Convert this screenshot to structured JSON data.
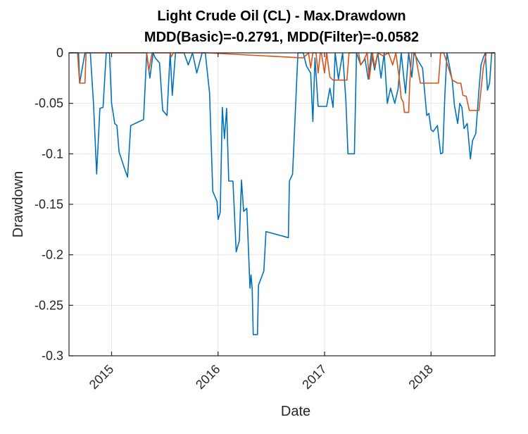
{
  "chart_data": {
    "type": "line",
    "title": "Light Crude Oil (CL) - Max.Drawdown",
    "subtitle": "MDD(Basic)=-0.2791, MDD(Filter)=-0.0582",
    "xlabel": "Date",
    "ylabel": "Drawdown",
    "xlim": [
      2014.6,
      2018.6
    ],
    "ylim": [
      -0.3,
      0
    ],
    "x_ticks": [
      2015,
      2016,
      2017,
      2018
    ],
    "x_tick_labels": [
      "2015",
      "2016",
      "2017",
      "2018"
    ],
    "y_ticks": [
      0,
      -0.05,
      -0.1,
      -0.15,
      -0.2,
      -0.25,
      -0.3
    ],
    "y_tick_labels": [
      "0",
      "-0.05",
      "-0.1",
      "-0.15",
      "-0.2",
      "-0.25",
      "-0.3"
    ],
    "grid": true,
    "colors": {
      "basic": "#0072BD",
      "filter": "#D95319",
      "grid": "#e6e6e6",
      "axis": "#262626"
    },
    "series": [
      {
        "points": [
          [
            2014.6,
            0
          ],
          [
            2014.69,
            0
          ],
          [
            2014.7,
            -0.03
          ],
          [
            2014.75,
            0
          ],
          [
            2014.8,
            0
          ],
          [
            2014.83,
            -0.05
          ],
          [
            2014.86,
            -0.12
          ],
          [
            2014.89,
            -0.055
          ],
          [
            2014.92,
            -0.054
          ],
          [
            2014.95,
            0
          ],
          [
            2014.98,
            0
          ],
          [
            2015.0,
            -0.05
          ],
          [
            2015.03,
            -0.07
          ],
          [
            2015.05,
            -0.072
          ],
          [
            2015.07,
            -0.098
          ],
          [
            2015.12,
            -0.114
          ],
          [
            2015.15,
            -0.123
          ],
          [
            2015.18,
            -0.072
          ],
          [
            2015.3,
            -0.066
          ],
          [
            2015.33,
            0
          ],
          [
            2015.36,
            -0.025
          ],
          [
            2015.39,
            0
          ],
          [
            2015.41,
            -0.005
          ],
          [
            2015.45,
            -0.01
          ],
          [
            2015.48,
            -0.057
          ],
          [
            2015.52,
            -0.062
          ],
          [
            2015.55,
            0
          ],
          [
            2015.57,
            -0.042
          ],
          [
            2015.6,
            0
          ],
          [
            2015.68,
            0
          ],
          [
            2015.72,
            -0.012
          ],
          [
            2015.76,
            0
          ],
          [
            2015.8,
            -0.02
          ],
          [
            2015.85,
            0
          ],
          [
            2015.88,
            0
          ],
          [
            2015.92,
            -0.04
          ],
          [
            2015.95,
            -0.137
          ],
          [
            2015.99,
            -0.147
          ],
          [
            2016.0,
            -0.165
          ],
          [
            2016.02,
            -0.158
          ],
          [
            2016.04,
            -0.054
          ],
          [
            2016.06,
            -0.085
          ],
          [
            2016.08,
            -0.055
          ],
          [
            2016.1,
            -0.127
          ],
          [
            2016.14,
            -0.127
          ],
          [
            2016.17,
            -0.197
          ],
          [
            2016.2,
            -0.186
          ],
          [
            2016.22,
            -0.126
          ],
          [
            2016.24,
            -0.157
          ],
          [
            2016.27,
            -0.154
          ],
          [
            2016.3,
            -0.233
          ],
          [
            2016.31,
            -0.22
          ],
          [
            2016.32,
            -0.233
          ],
          [
            2016.33,
            -0.279
          ],
          [
            2016.37,
            -0.279
          ],
          [
            2016.38,
            -0.23
          ],
          [
            2016.43,
            -0.216
          ],
          [
            2016.45,
            -0.177
          ],
          [
            2016.66,
            -0.183
          ],
          [
            2016.67,
            -0.127
          ],
          [
            2016.7,
            -0.12
          ],
          [
            2016.75,
            0
          ],
          [
            2016.8,
            0
          ],
          [
            2016.83,
            -0.013
          ],
          [
            2016.87,
            -0.02
          ],
          [
            2016.89,
            -0.068
          ],
          [
            2016.91,
            -0.005
          ],
          [
            2016.94,
            -0.053
          ],
          [
            2017.02,
            -0.053
          ],
          [
            2017.05,
            -0.035
          ],
          [
            2017.08,
            -0.054
          ],
          [
            2017.1,
            0
          ],
          [
            2017.13,
            -0.026
          ],
          [
            2017.17,
            0
          ],
          [
            2017.2,
            -0.047
          ],
          [
            2017.22,
            -0.1
          ],
          [
            2017.28,
            -0.1
          ],
          [
            2017.3,
            0
          ],
          [
            2017.34,
            -0.012
          ],
          [
            2017.38,
            -0.006
          ],
          [
            2017.41,
            -0.026
          ],
          [
            2017.44,
            0
          ],
          [
            2017.47,
            -0.017
          ],
          [
            2017.5,
            0
          ],
          [
            2017.53,
            -0.025
          ],
          [
            2017.56,
            0
          ],
          [
            2017.59,
            -0.05
          ],
          [
            2017.62,
            -0.035
          ],
          [
            2017.66,
            -0.05
          ],
          [
            2017.69,
            -0.036
          ],
          [
            2017.72,
            0
          ],
          [
            2017.74,
            -0.02
          ],
          [
            2017.76,
            -0.04
          ],
          [
            2017.79,
            0
          ],
          [
            2017.82,
            -0.024
          ],
          [
            2017.84,
            0
          ],
          [
            2017.88,
            -0.008
          ],
          [
            2017.92,
            -0.015
          ],
          [
            2017.96,
            -0.062
          ],
          [
            2017.98,
            -0.06
          ],
          [
            2018.0,
            -0.076
          ],
          [
            2018.02,
            -0.078
          ],
          [
            2018.06,
            -0.072
          ],
          [
            2018.09,
            -0.1
          ],
          [
            2018.11,
            -0.099
          ],
          [
            2018.13,
            -0.042
          ],
          [
            2018.15,
            0
          ],
          [
            2018.2,
            -0.028
          ],
          [
            2018.22,
            -0.052
          ],
          [
            2018.25,
            -0.07
          ],
          [
            2018.27,
            -0.05
          ],
          [
            2018.29,
            -0.054
          ],
          [
            2018.31,
            -0.075
          ],
          [
            2018.34,
            -0.07
          ],
          [
            2018.37,
            -0.105
          ],
          [
            2018.39,
            -0.087
          ],
          [
            2018.42,
            -0.08
          ],
          [
            2018.45,
            -0.037
          ],
          [
            2018.47,
            -0.012
          ],
          [
            2018.49,
            -0.005
          ],
          [
            2018.51,
            0
          ],
          [
            2018.53,
            -0.037
          ],
          [
            2018.55,
            -0.03
          ],
          [
            2018.57,
            0
          ],
          [
            2018.6,
            0
          ]
        ]
      },
      {
        "points": [
          [
            2014.6,
            0
          ],
          [
            2014.68,
            0
          ],
          [
            2014.7,
            -0.03
          ],
          [
            2014.75,
            -0.03
          ],
          [
            2014.76,
            0
          ],
          [
            2015.33,
            0
          ],
          [
            2015.35,
            -0.018
          ],
          [
            2015.38,
            0
          ],
          [
            2015.55,
            0
          ],
          [
            2015.56,
            -0.004
          ],
          [
            2015.58,
            0
          ],
          [
            2015.9,
            0
          ],
          [
            2016.8,
            -0.005
          ],
          [
            2016.85,
            0
          ],
          [
            2016.87,
            -0.015
          ],
          [
            2016.89,
            0
          ],
          [
            2016.92,
            0
          ],
          [
            2016.94,
            -0.02
          ],
          [
            2016.96,
            0
          ],
          [
            2016.97,
            0
          ],
          [
            2017.0,
            -0.02
          ],
          [
            2017.02,
            0
          ],
          [
            2017.05,
            -0.024
          ],
          [
            2017.08,
            -0.027
          ],
          [
            2017.21,
            -0.027
          ],
          [
            2017.23,
            0
          ],
          [
            2017.32,
            0
          ],
          [
            2017.34,
            -0.012
          ],
          [
            2017.37,
            -0.007
          ],
          [
            2017.4,
            0
          ],
          [
            2017.42,
            -0.026
          ],
          [
            2017.45,
            0
          ],
          [
            2017.47,
            -0.014
          ],
          [
            2017.5,
            0
          ],
          [
            2017.55,
            -0.003
          ],
          [
            2017.6,
            0
          ],
          [
            2017.64,
            -0.012
          ],
          [
            2017.67,
            0
          ],
          [
            2017.7,
            -0.024
          ],
          [
            2017.72,
            -0.045
          ],
          [
            2017.74,
            -0.049
          ],
          [
            2017.75,
            -0.059
          ],
          [
            2017.79,
            -0.059
          ],
          [
            2017.8,
            -0.03
          ],
          [
            2017.82,
            0
          ],
          [
            2017.85,
            0
          ],
          [
            2017.9,
            -0.03
          ],
          [
            2018.07,
            -0.03
          ],
          [
            2018.09,
            0
          ],
          [
            2018.12,
            0
          ],
          [
            2018.2,
            -0.027
          ],
          [
            2018.25,
            -0.03
          ],
          [
            2018.28,
            -0.03
          ],
          [
            2018.3,
            -0.042
          ],
          [
            2018.33,
            -0.043
          ],
          [
            2018.36,
            -0.057
          ],
          [
            2018.45,
            -0.057
          ],
          [
            2018.49,
            -0.015
          ],
          [
            2018.52,
            0
          ],
          [
            2018.6,
            0
          ]
        ]
      }
    ]
  }
}
